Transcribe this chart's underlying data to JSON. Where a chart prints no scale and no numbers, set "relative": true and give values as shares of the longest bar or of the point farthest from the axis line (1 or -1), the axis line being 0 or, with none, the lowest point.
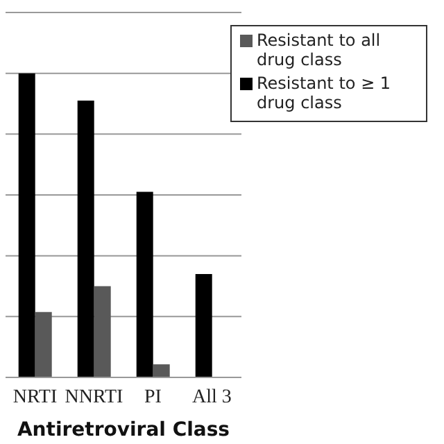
{
  "chart_data": {
    "type": "bar",
    "xlabel": "Antiretroviral Class",
    "categories": [
      "NRTI",
      "NNRTI",
      "PI",
      "All 3"
    ],
    "relative": true,
    "grid": "y",
    "legend": "top right",
    "series": [
      {
        "name": "Resistant to ≥ 1 drug class",
        "color": "#000000",
        "values": [
          1,
          0.91,
          0.61,
          0.34
        ]
      },
      {
        "name": "Resistant to all drug class",
        "color": "#595959",
        "values": [
          0.215,
          0.3,
          0.043,
          null
        ]
      }
    ]
  }
}
